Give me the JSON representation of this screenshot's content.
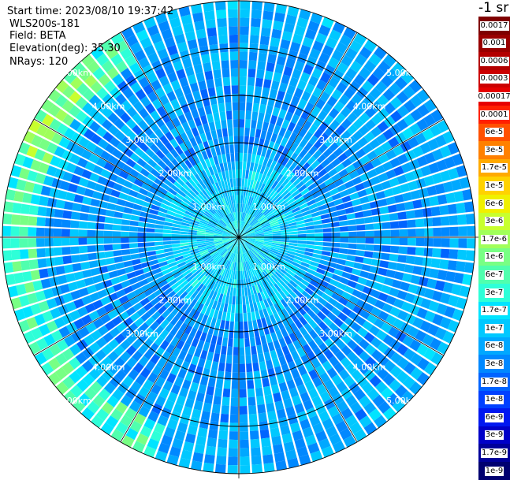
{
  "header": {
    "start_time": "Start time: 2023/08/10 19:37:42",
    "instrument": "WLS200s-181",
    "field": "Field: BETA",
    "elevation": "Elevation(deg): 35.30",
    "nrays": "NRays: 120"
  },
  "colorbar": {
    "title": "-1 sr",
    "segments": [
      {
        "label": "0.0017",
        "color": "#7f0000"
      },
      {
        "label": "0.001",
        "color": "#990000"
      },
      {
        "label": "0.0006",
        "color": "#b30000"
      },
      {
        "label": "0.0003",
        "color": "#cc0000"
      },
      {
        "label": "0.00017",
        "color": "#e60000"
      },
      {
        "label": "0.0001",
        "color": "#ff2000"
      },
      {
        "label": "6e-5",
        "color": "#ff5000"
      },
      {
        "label": "3e-5",
        "color": "#ff8000"
      },
      {
        "label": "1.7e-5",
        "color": "#ffaa00"
      },
      {
        "label": "1e-5",
        "color": "#ffd200"
      },
      {
        "label": "6e-6",
        "color": "#f0f000"
      },
      {
        "label": "3e-6",
        "color": "#c8ff2e"
      },
      {
        "label": "1.7e-6",
        "color": "#a0ff5a"
      },
      {
        "label": "1e-6",
        "color": "#78ff84"
      },
      {
        "label": "6e-7",
        "color": "#50ffae"
      },
      {
        "label": "3e-7",
        "color": "#2effd8"
      },
      {
        "label": "1.7e-7",
        "color": "#00e4ff"
      },
      {
        "label": "1e-7",
        "color": "#00c8ff"
      },
      {
        "label": "6e-8",
        "color": "#00a8ff"
      },
      {
        "label": "3e-8",
        "color": "#0088ff"
      },
      {
        "label": "1.7e-8",
        "color": "#0064ff"
      },
      {
        "label": "1e-8",
        "color": "#0040ff"
      },
      {
        "label": "6e-9",
        "color": "#0018f0"
      },
      {
        "label": "3e-9",
        "color": "#0000c8"
      },
      {
        "label": "1.7e-9",
        "color": "#00009a"
      },
      {
        "label": "1e-9",
        "color": "#000070"
      }
    ]
  },
  "chart_data": {
    "type": "heatmap",
    "projection": "polar",
    "rings": [
      {
        "range_km": 1.0,
        "label": "1.00km"
      },
      {
        "range_km": 2.0,
        "label": "2.00km"
      },
      {
        "range_km": 3.0,
        "label": "3.00km"
      },
      {
        "range_km": 4.0,
        "label": "4.00km"
      },
      {
        "range_km": 5.0,
        "label": "5.00km"
      }
    ],
    "max_range_km": 5.0,
    "azimuth_spokes_deg": [
      0,
      30,
      60,
      90,
      120,
      150,
      180,
      210,
      240,
      270,
      300,
      330
    ],
    "rays": 120,
    "dominant_values": [
      "1.7e-8",
      "3e-8",
      "6e-8",
      "1e-7",
      "1.7e-7",
      "3e-7"
    ],
    "west_edge_values": [
      "1e-6",
      "1.7e-6",
      "3e-6"
    ]
  }
}
